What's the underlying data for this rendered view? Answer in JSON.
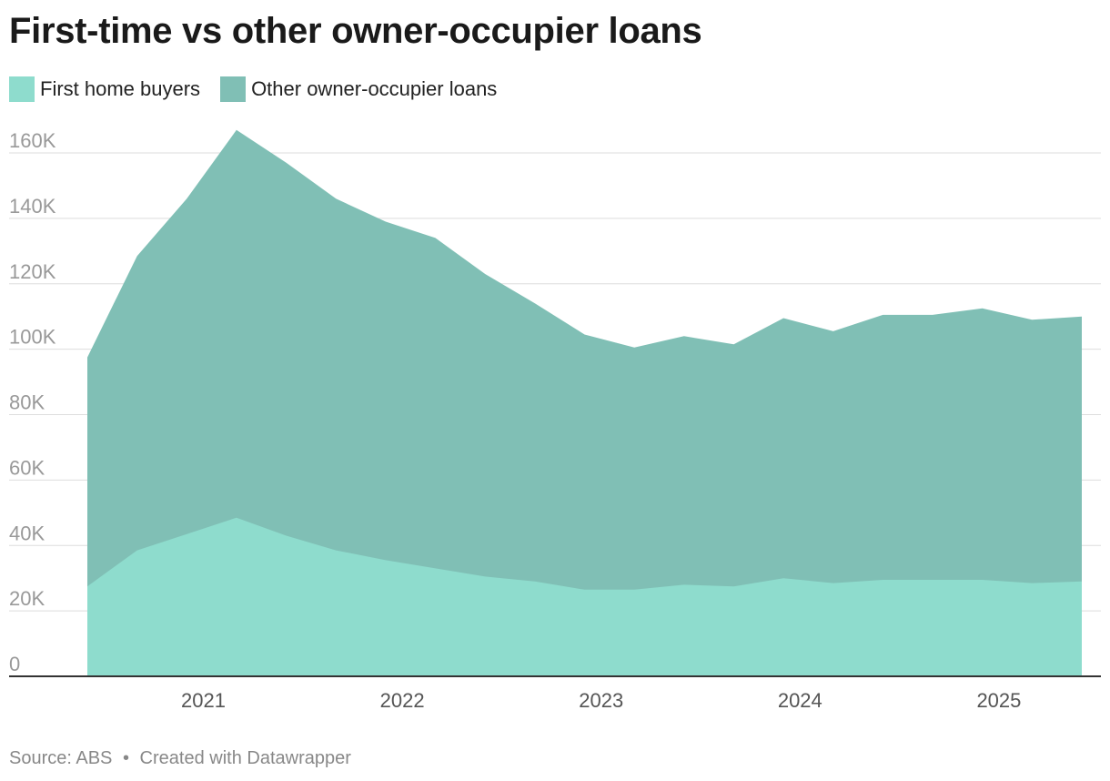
{
  "title": "First-time vs other owner-occupier loans",
  "footer": {
    "source": "Source: ABS",
    "separator": "•",
    "credit": "Created with Datawrapper"
  },
  "colors": {
    "first_home_buyers": "#8edccd",
    "other_owner_occupier": "#80bfb5",
    "grid": "#dddddd",
    "baseline": "#333333"
  },
  "chart_data": {
    "type": "area",
    "stacked": false,
    "title": "First-time vs other owner-occupier loans",
    "xlabel": "",
    "ylabel": "",
    "ylim": [
      0,
      160000
    ],
    "yticks": [
      {
        "value": 0,
        "label": "0"
      },
      {
        "value": 20000,
        "label": "20K"
      },
      {
        "value": 40000,
        "label": "40K"
      },
      {
        "value": 60000,
        "label": "60K"
      },
      {
        "value": 80000,
        "label": "80K"
      },
      {
        "value": 100000,
        "label": "100K"
      },
      {
        "value": 120000,
        "label": "120K"
      },
      {
        "value": 140000,
        "label": "140K"
      },
      {
        "value": 160000,
        "label": "160K"
      }
    ],
    "xlim": [
      "2020-06",
      "2025-06"
    ],
    "xticks": [
      {
        "value": "2021-01",
        "label": "2021"
      },
      {
        "value": "2022-01",
        "label": "2022"
      },
      {
        "value": "2023-01",
        "label": "2023"
      },
      {
        "value": "2024-01",
        "label": "2024"
      },
      {
        "value": "2025-01",
        "label": "2025"
      }
    ],
    "x": [
      "2020-06",
      "2020-09",
      "2020-12",
      "2021-03",
      "2021-06",
      "2021-09",
      "2021-12",
      "2022-03",
      "2022-06",
      "2022-09",
      "2022-12",
      "2023-03",
      "2023-06",
      "2023-09",
      "2023-12",
      "2024-03",
      "2024-06",
      "2024-09",
      "2024-12",
      "2025-03",
      "2025-06"
    ],
    "grid": true,
    "legend_position": "top-left",
    "series": [
      {
        "name": "Other owner-occupier loans",
        "color_key": "other_owner_occupier",
        "values": [
          97500,
          128500,
          146000,
          167000,
          157000,
          146000,
          139000,
          134000,
          123000,
          114000,
          104500,
          100500,
          104000,
          101500,
          109500,
          105500,
          110500,
          110500,
          112500,
          109000,
          110000
        ]
      },
      {
        "name": "First home buyers",
        "color_key": "first_home_buyers",
        "values": [
          27500,
          38500,
          43500,
          48500,
          43000,
          38500,
          35500,
          33000,
          30500,
          29000,
          26500,
          26500,
          28000,
          27500,
          30000,
          28500,
          29500,
          29500,
          29500,
          28500,
          29000
        ]
      }
    ]
  }
}
